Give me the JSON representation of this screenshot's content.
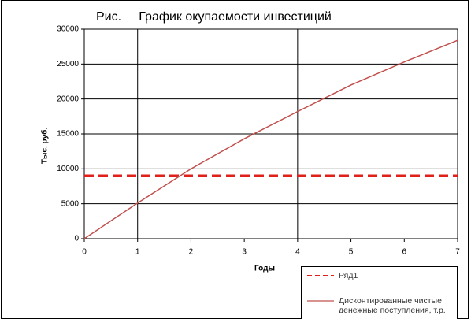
{
  "chart_data": {
    "type": "line",
    "title": "Рис.     График окупаемости инвестиций",
    "x_label": "Годы",
    "y_label": "Тыс. руб.",
    "x": [
      0,
      1,
      2,
      3,
      4,
      5,
      6,
      7
    ],
    "series": [
      {
        "name": "Ряд1",
        "color": "#e0201a",
        "dashed": true,
        "values": [
          9000,
          9000,
          9000,
          9000,
          9000,
          9000,
          9000,
          9000
        ]
      },
      {
        "name": "Дисконтированные чистые денежные поступления, т.р.",
        "color": "#c0504d",
        "dashed": false,
        "values": [
          0,
          5100,
          10000,
          14300,
          18200,
          22000,
          25300,
          28400
        ]
      }
    ],
    "xlim": [
      0,
      7
    ],
    "xticks": [
      0,
      1,
      2,
      3,
      4,
      5,
      6,
      7
    ],
    "xgrid": [
      1,
      4,
      7
    ],
    "ylim": [
      0,
      30000
    ],
    "yticks": [
      0,
      5000,
      10000,
      15000,
      20000,
      25000,
      30000
    ],
    "grid": true
  }
}
